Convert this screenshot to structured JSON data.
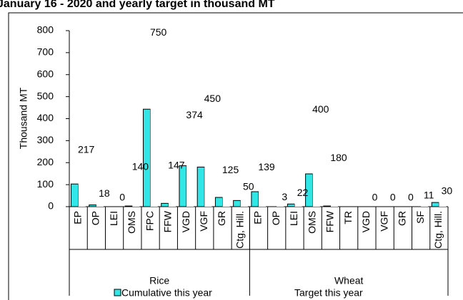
{
  "chart_data": {
    "type": "bar",
    "title": "January 16 - 2020 and yearly target in thousand MT",
    "y_label": "Thousand MT",
    "category_groups": [
      {
        "label": "Rice",
        "categories": [
          "EP",
          "OP",
          "LEI",
          "OMS",
          "FPC",
          "FFW",
          "VGD",
          "VGF",
          "GR",
          "Ctg, Hill."
        ]
      },
      {
        "label": "Wheat",
        "categories": [
          "EP",
          "OP",
          "LEI",
          "OMS",
          "FFW",
          "TR",
          "VGD",
          "VGF",
          "GR",
          "SF",
          "Ctg, Hill."
        ]
      }
    ],
    "series": [
      {
        "name": "Cumulative this year",
        "color": "#33e6e6",
        "values": [
          103,
          8,
          0,
          3,
          443,
          15,
          186,
          180,
          42,
          28,
          68,
          0,
          12,
          149,
          3,
          0,
          0,
          0,
          0,
          0,
          19
        ]
      },
      {
        "name": "Target this year",
        "color": "#ffffff",
        "show_labels": true,
        "values": [
          217,
          18,
          0,
          140,
          750,
          147,
          374,
          450,
          125,
          50,
          139,
          3,
          22,
          400,
          180,
          null,
          0,
          0,
          0,
          11,
          30
        ]
      }
    ],
    "ylim": [
      0,
      800
    ],
    "yticks": [
      0,
      100,
      200,
      300,
      400,
      500,
      600,
      700,
      800
    ]
  }
}
